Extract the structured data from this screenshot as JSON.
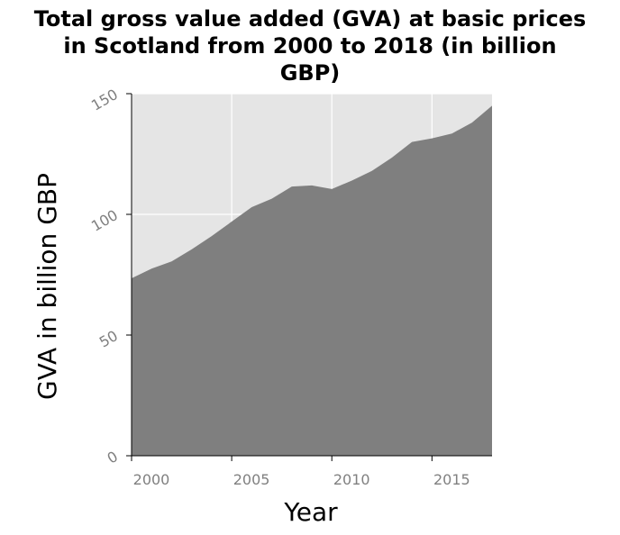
{
  "chart_data": {
    "type": "area",
    "title_lines": [
      "Total gross value added (GVA) at basic prices",
      "in Scotland from 2000 to 2018 (in billion",
      "GBP)"
    ],
    "xlabel": "Year",
    "ylabel": "GVA in billion GBP",
    "xlim": [
      2000,
      2018
    ],
    "ylim": [
      0,
      150
    ],
    "xticks": [
      2000,
      2005,
      2010,
      2015
    ],
    "yticks": [
      0,
      50,
      100,
      150
    ],
    "grid": true,
    "colors": {
      "plot_background": "#e5e5e5",
      "area_fill": "#7f7f7f",
      "grid": "#ffffff",
      "tick_text": "#808080"
    },
    "x": [
      2000,
      2001,
      2002,
      2003,
      2004,
      2005,
      2006,
      2007,
      2008,
      2009,
      2010,
      2011,
      2012,
      2013,
      2014,
      2015,
      2016,
      2017,
      2018
    ],
    "values": [
      73.5,
      77.5,
      80.5,
      85.5,
      91.0,
      97.0,
      103.0,
      106.5,
      111.5,
      112.0,
      110.5,
      114.0,
      118.0,
      123.5,
      130.0,
      131.5,
      133.5,
      138.0,
      145.0
    ]
  }
}
